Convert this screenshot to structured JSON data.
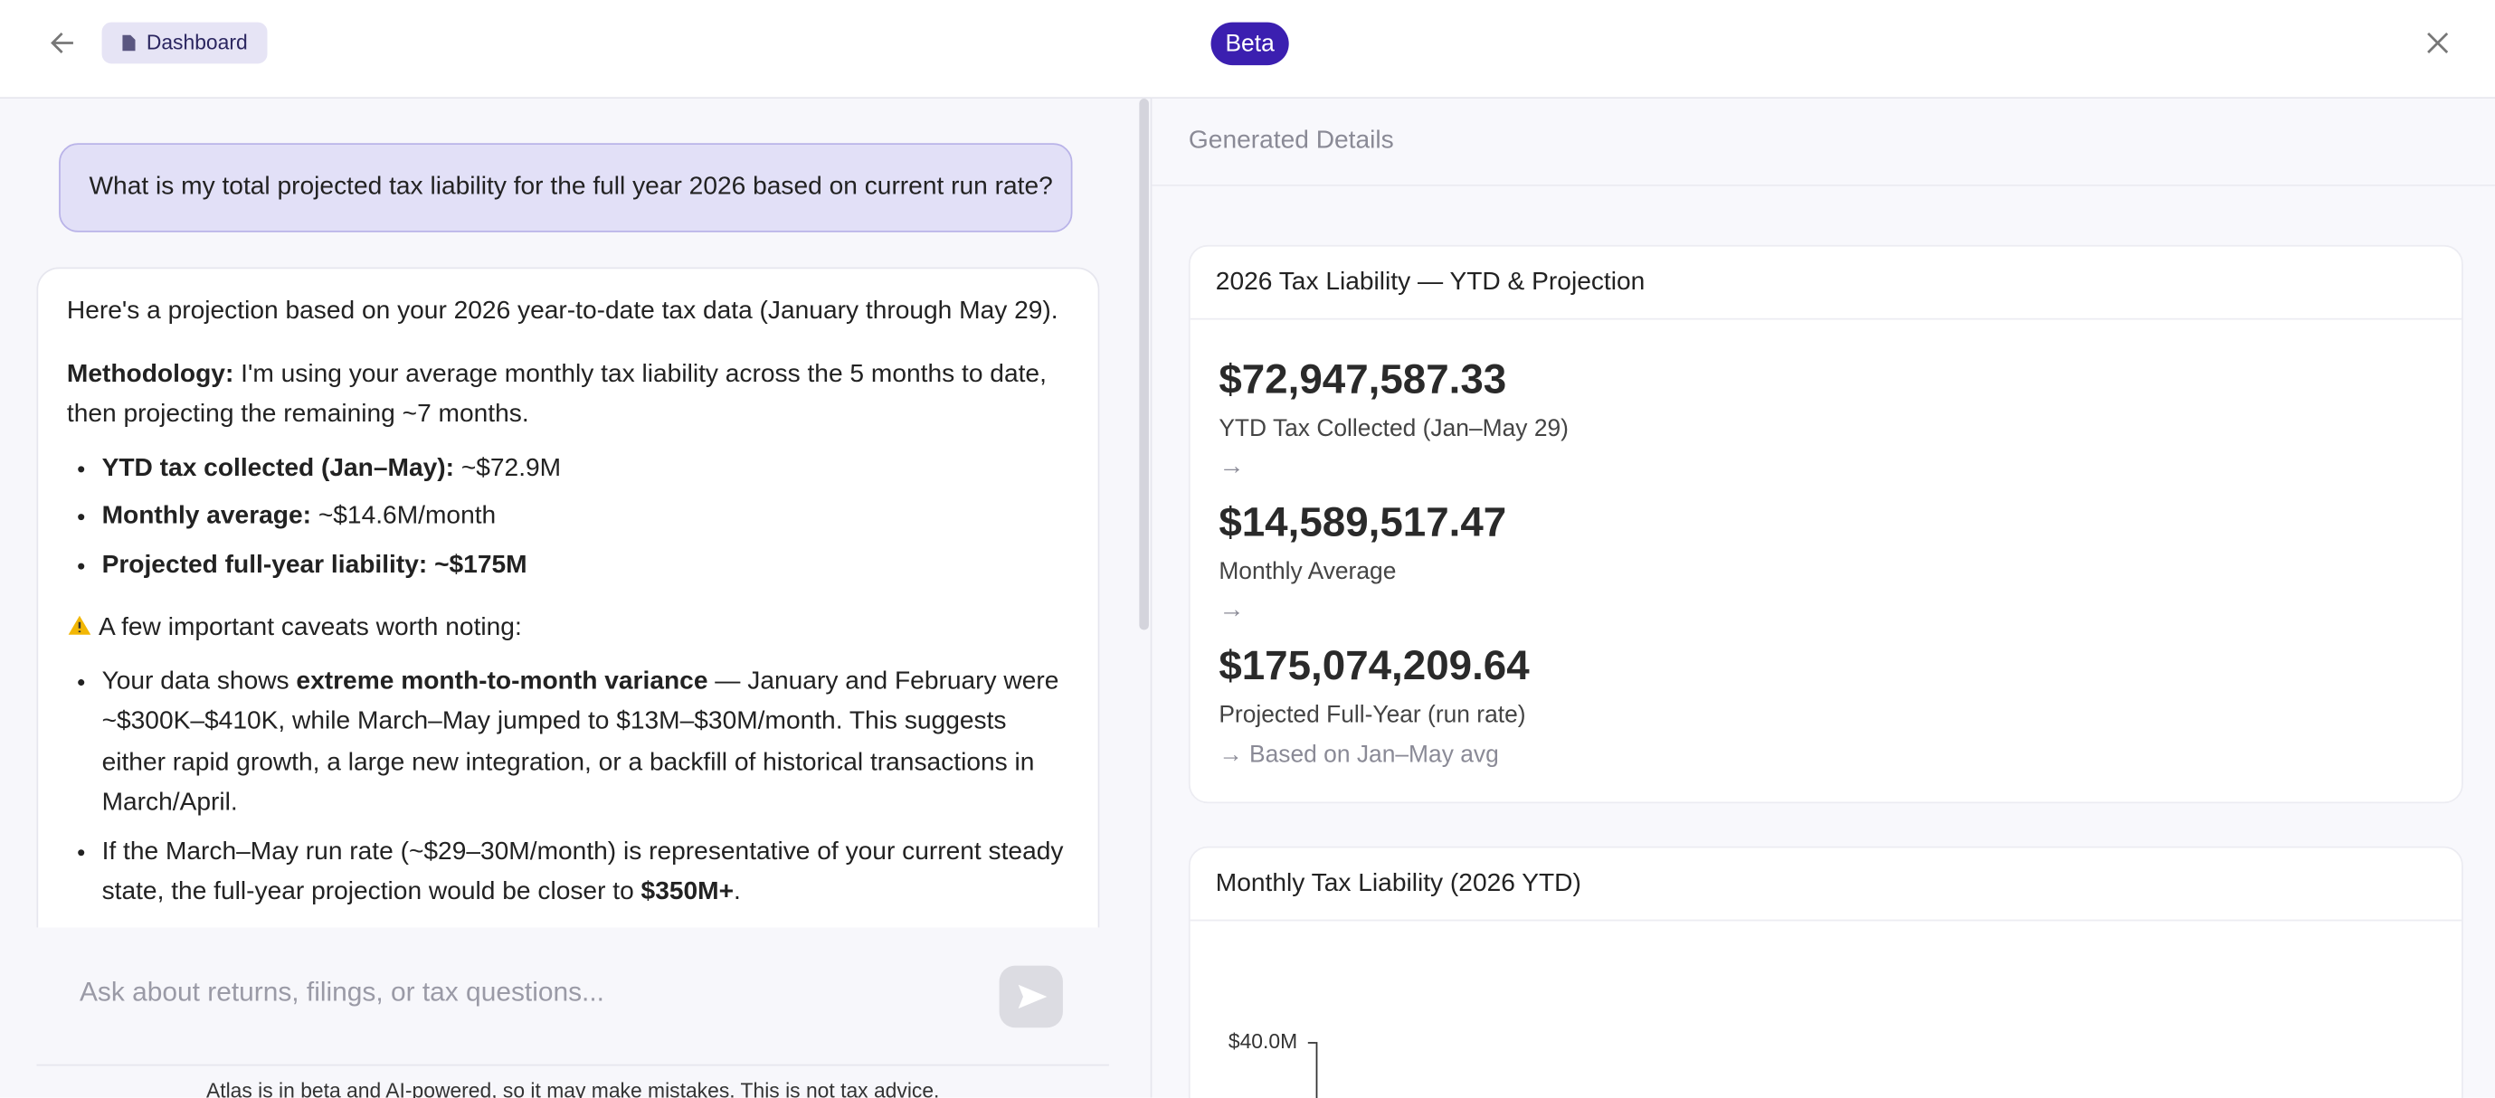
{
  "header": {
    "dashboard_button": "Dashboard",
    "badge": "Beta"
  },
  "chat": {
    "user_message": "What is my total projected tax liability for the full year 2026 based on current run rate?",
    "response": {
      "intro": "Here's a projection based on your 2026 year-to-date tax data (January through May 29).",
      "methodology": [
        {
          "bold": "Methodology:"
        },
        {
          "text": " I'm using your average monthly tax liability across the 5 months to date, then projecting the remaining ~7 months."
        }
      ],
      "summary": [
        [
          {
            "bold": "YTD tax collected (Jan–May):"
          },
          {
            "text": " ~$72.9M"
          }
        ],
        [
          {
            "bold": "Monthly average:"
          },
          {
            "text": " ~$14.6M/month"
          }
        ],
        [
          {
            "bold": "Projected full-year liability: ~$175M"
          }
        ]
      ],
      "caveat_heading": "A few important caveats worth noting:",
      "caveats": [
        [
          {
            "text": "Your data shows "
          },
          {
            "bold": "extreme month-to-month variance"
          },
          {
            "text": " — January and February were ~$300K–$410K, while March–May jumped to $13M–$30M/month. This suggests either rapid growth, a large new integration, or a backfill of historical transactions in March/April."
          }
        ],
        [
          {
            "text": "If the March–May run rate (~$29–30M/month) is representative of your current steady state, the full-year projection would be closer to "
          },
          {
            "bold": "$350M+"
          },
          {
            "text": "."
          }
        ]
      ]
    },
    "input_placeholder": "Ask about returns, filings, or tax questions...",
    "disclaimer": "Atlas is in beta and AI-powered, so it may make mistakes. This is not tax advice."
  },
  "details": {
    "panel_title": "Generated Details",
    "separator": "→",
    "cards": [
      {
        "title": "2026 Tax Liability — YTD & Projection",
        "metrics": [
          {
            "value": "$72,947,587.33",
            "label": "YTD Tax Collected (Jan–May 29)"
          },
          {
            "value": "$14,589,517.47",
            "label": "Monthly Average"
          },
          {
            "value": "$175,074,209.64",
            "label": "Projected Full-Year (run rate)"
          }
        ],
        "note": "→ Based on Jan–May avg"
      },
      {
        "title": "Monthly Tax Liability (2026 YTD)",
        "y_tick": "$40.0M"
      }
    ]
  }
}
